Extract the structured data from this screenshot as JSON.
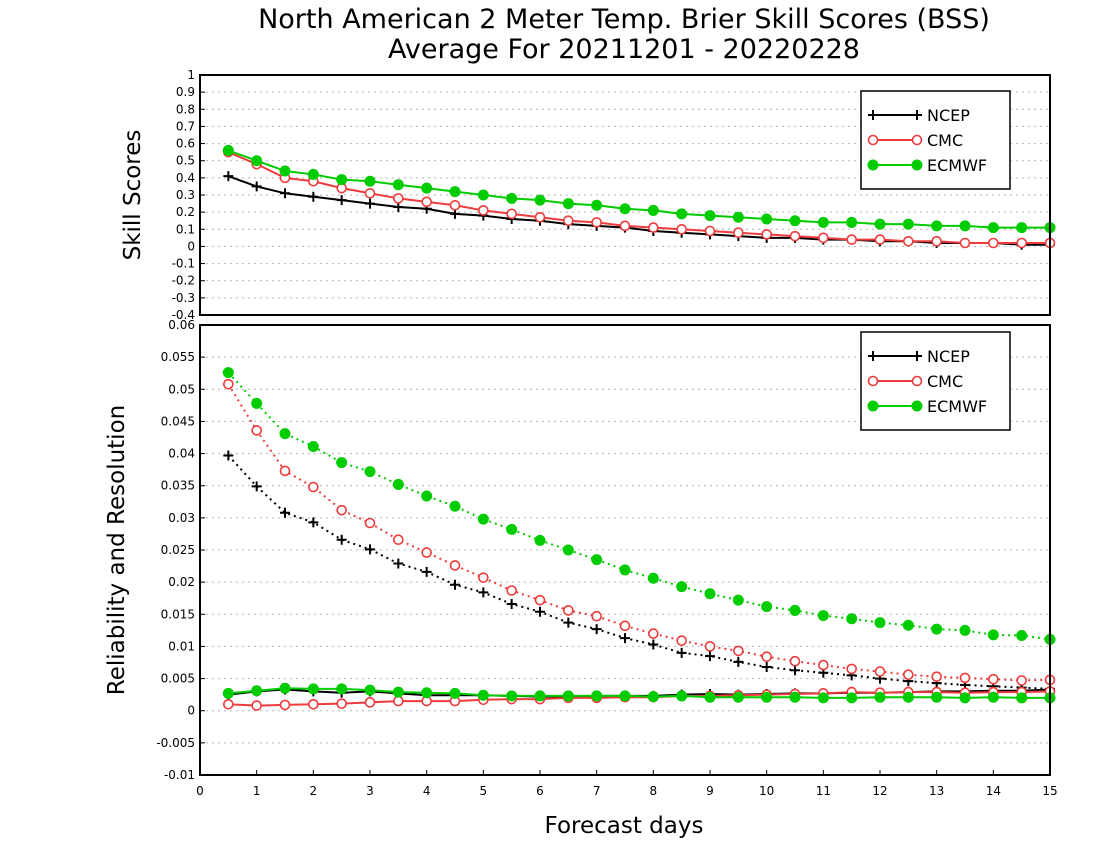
{
  "figure": {
    "title_line1": "North American 2 Meter Temp. Brier Skill Scores (BSS)",
    "title_line2": "Average For 20211201 - 20220228",
    "xlabel": "Forecast days"
  },
  "colors": {
    "NCEP": "#000000",
    "CMC": "#ee3b3b",
    "ECMWF": "#00cc00",
    "grid": "#b4b4b4"
  },
  "chart_data": [
    {
      "type": "line",
      "title": "",
      "ylabel": "Skill Scores",
      "xlabel": "Forecast days",
      "xlim": [
        0,
        15
      ],
      "ylim": [
        -0.4,
        1
      ],
      "x_ticks": [
        0,
        1,
        2,
        3,
        4,
        5,
        6,
        7,
        8,
        9,
        10,
        11,
        12,
        13,
        14,
        15
      ],
      "y_ticks": [
        -0.4,
        -0.3,
        -0.2,
        -0.1,
        0,
        0.1,
        0.2,
        0.3,
        0.4,
        0.5,
        0.6,
        0.7,
        0.8,
        0.9,
        1
      ],
      "y_tick_labels": [
        "-0.4",
        "-0.3",
        "-0.2",
        "-0.1",
        "0",
        "0.1",
        "0.2",
        "0.3",
        "0.4",
        "0.5",
        "0.6",
        "0.7",
        "0.8",
        "0.9",
        "1"
      ],
      "grid": true,
      "legend": {
        "placement": "top-right",
        "entries": [
          "NCEP",
          "CMC",
          "ECMWF"
        ]
      },
      "x": [
        0.5,
        1,
        1.5,
        2,
        2.5,
        3,
        3.5,
        4,
        4.5,
        5,
        5.5,
        6,
        6.5,
        7,
        7.5,
        8,
        8.5,
        9,
        9.5,
        10,
        10.5,
        11,
        11.5,
        12,
        12.5,
        13,
        13.5,
        14,
        14.5,
        15
      ],
      "series": [
        {
          "name": "NCEP",
          "marker": "plus",
          "line": "solid",
          "values": [
            0.41,
            0.35,
            0.31,
            0.29,
            0.27,
            0.25,
            0.23,
            0.22,
            0.19,
            0.18,
            0.16,
            0.15,
            0.13,
            0.12,
            0.11,
            0.09,
            0.08,
            0.07,
            0.06,
            0.05,
            0.05,
            0.04,
            0.04,
            0.03,
            0.03,
            0.02,
            0.02,
            0.02,
            0.01,
            0.01
          ]
        },
        {
          "name": "CMC",
          "marker": "open-circle",
          "line": "solid",
          "values": [
            0.55,
            0.48,
            0.4,
            0.38,
            0.34,
            0.31,
            0.28,
            0.26,
            0.24,
            0.21,
            0.19,
            0.17,
            0.15,
            0.14,
            0.12,
            0.11,
            0.1,
            0.09,
            0.08,
            0.07,
            0.06,
            0.05,
            0.04,
            0.04,
            0.03,
            0.03,
            0.02,
            0.02,
            0.02,
            0.02
          ]
        },
        {
          "name": "ECMWF",
          "marker": "filled-circle",
          "line": "solid",
          "values": [
            0.56,
            0.5,
            0.44,
            0.42,
            0.39,
            0.38,
            0.36,
            0.34,
            0.32,
            0.3,
            0.28,
            0.27,
            0.25,
            0.24,
            0.22,
            0.21,
            0.19,
            0.18,
            0.17,
            0.16,
            0.15,
            0.14,
            0.14,
            0.13,
            0.13,
            0.12,
            0.12,
            0.11,
            0.11,
            0.11
          ]
        }
      ]
    },
    {
      "type": "line",
      "title": "",
      "ylabel": "Reliability and Resolution",
      "xlabel": "Forecast days",
      "xlim": [
        0,
        15
      ],
      "ylim": [
        -0.01,
        0.06
      ],
      "x_ticks": [
        0,
        1,
        2,
        3,
        4,
        5,
        6,
        7,
        8,
        9,
        10,
        11,
        12,
        13,
        14,
        15
      ],
      "y_ticks": [
        -0.01,
        -0.005,
        0,
        0.005,
        0.01,
        0.015,
        0.02,
        0.025,
        0.03,
        0.035,
        0.04,
        0.045,
        0.05,
        0.055,
        0.06
      ],
      "y_tick_labels": [
        "-0.01",
        "-0.005",
        "0",
        "0.005",
        "0.01",
        "0.015",
        "0.02",
        "0.025",
        "0.03",
        "0.035",
        "0.04",
        "0.045",
        "0.05",
        "0.055",
        "0.06"
      ],
      "grid": true,
      "legend": {
        "placement": "top-right",
        "entries": [
          "NCEP",
          "CMC",
          "ECMWF"
        ]
      },
      "x": [
        0.5,
        1,
        1.5,
        2,
        2.5,
        3,
        3.5,
        4,
        4.5,
        5,
        5.5,
        6,
        6.5,
        7,
        7.5,
        8,
        8.5,
        9,
        9.5,
        10,
        10.5,
        11,
        11.5,
        12,
        12.5,
        13,
        13.5,
        14,
        14.5,
        15
      ],
      "series": [
        {
          "name": "NCEP",
          "group": "resolution",
          "marker": "plus",
          "line": "dotted",
          "values": [
            0.0397,
            0.0349,
            0.0308,
            0.0293,
            0.0266,
            0.0251,
            0.0229,
            0.0216,
            0.0196,
            0.0184,
            0.0166,
            0.0154,
            0.0137,
            0.0127,
            0.0113,
            0.0103,
            0.009,
            0.0085,
            0.0076,
            0.0068,
            0.0063,
            0.0059,
            0.0055,
            0.005,
            0.0046,
            0.0043,
            0.004,
            0.0038,
            0.0036,
            0.0034
          ]
        },
        {
          "name": "CMC",
          "group": "resolution",
          "marker": "open-circle",
          "line": "dotted",
          "values": [
            0.0508,
            0.0436,
            0.0373,
            0.0348,
            0.0312,
            0.0292,
            0.0266,
            0.0246,
            0.0226,
            0.0207,
            0.0187,
            0.0172,
            0.0156,
            0.0147,
            0.0132,
            0.012,
            0.0109,
            0.01,
            0.0093,
            0.0084,
            0.0077,
            0.0071,
            0.0065,
            0.0061,
            0.0056,
            0.0053,
            0.0051,
            0.0049,
            0.0047,
            0.0048
          ]
        },
        {
          "name": "ECMWF",
          "group": "resolution",
          "marker": "filled-circle",
          "line": "dotted",
          "values": [
            0.0526,
            0.0478,
            0.0431,
            0.0411,
            0.0386,
            0.0372,
            0.0352,
            0.0334,
            0.0318,
            0.0298,
            0.0282,
            0.0265,
            0.025,
            0.0235,
            0.0219,
            0.0206,
            0.0193,
            0.0182,
            0.0172,
            0.0162,
            0.0156,
            0.0148,
            0.0143,
            0.0137,
            0.0133,
            0.0127,
            0.0125,
            0.0118,
            0.0117,
            0.0111
          ]
        },
        {
          "name": "NCEP",
          "group": "reliability",
          "marker": "plus",
          "line": "solid",
          "values": [
            0.0025,
            0.003,
            0.0033,
            0.003,
            0.0028,
            0.003,
            0.0027,
            0.0024,
            0.0024,
            0.0024,
            0.0023,
            0.0022,
            0.0022,
            0.0023,
            0.0023,
            0.0023,
            0.0025,
            0.0026,
            0.0025,
            0.0026,
            0.0027,
            0.0027,
            0.0028,
            0.0028,
            0.0029,
            0.003,
            0.003,
            0.0031,
            0.0031,
            0.0033
          ]
        },
        {
          "name": "CMC",
          "group": "reliability",
          "marker": "open-circle",
          "line": "solid",
          "values": [
            0.001,
            0.0008,
            0.0009,
            0.001,
            0.0011,
            0.0013,
            0.0015,
            0.0015,
            0.0015,
            0.0017,
            0.0018,
            0.0018,
            0.002,
            0.002,
            0.0021,
            0.0021,
            0.0023,
            0.0023,
            0.0024,
            0.0025,
            0.0026,
            0.0027,
            0.0029,
            0.0028,
            0.0029,
            0.0029,
            0.0028,
            0.0029,
            0.0029,
            0.003
          ]
        },
        {
          "name": "ECMWF",
          "group": "reliability",
          "marker": "filled-circle",
          "line": "solid",
          "values": [
            0.0027,
            0.0031,
            0.0035,
            0.0034,
            0.0034,
            0.0032,
            0.0029,
            0.0028,
            0.0027,
            0.0024,
            0.0023,
            0.0023,
            0.0023,
            0.0023,
            0.0023,
            0.0022,
            0.0023,
            0.0021,
            0.0021,
            0.0021,
            0.0021,
            0.002,
            0.002,
            0.0021,
            0.0021,
            0.0021,
            0.002,
            0.0021,
            0.002,
            0.002
          ]
        }
      ]
    }
  ]
}
